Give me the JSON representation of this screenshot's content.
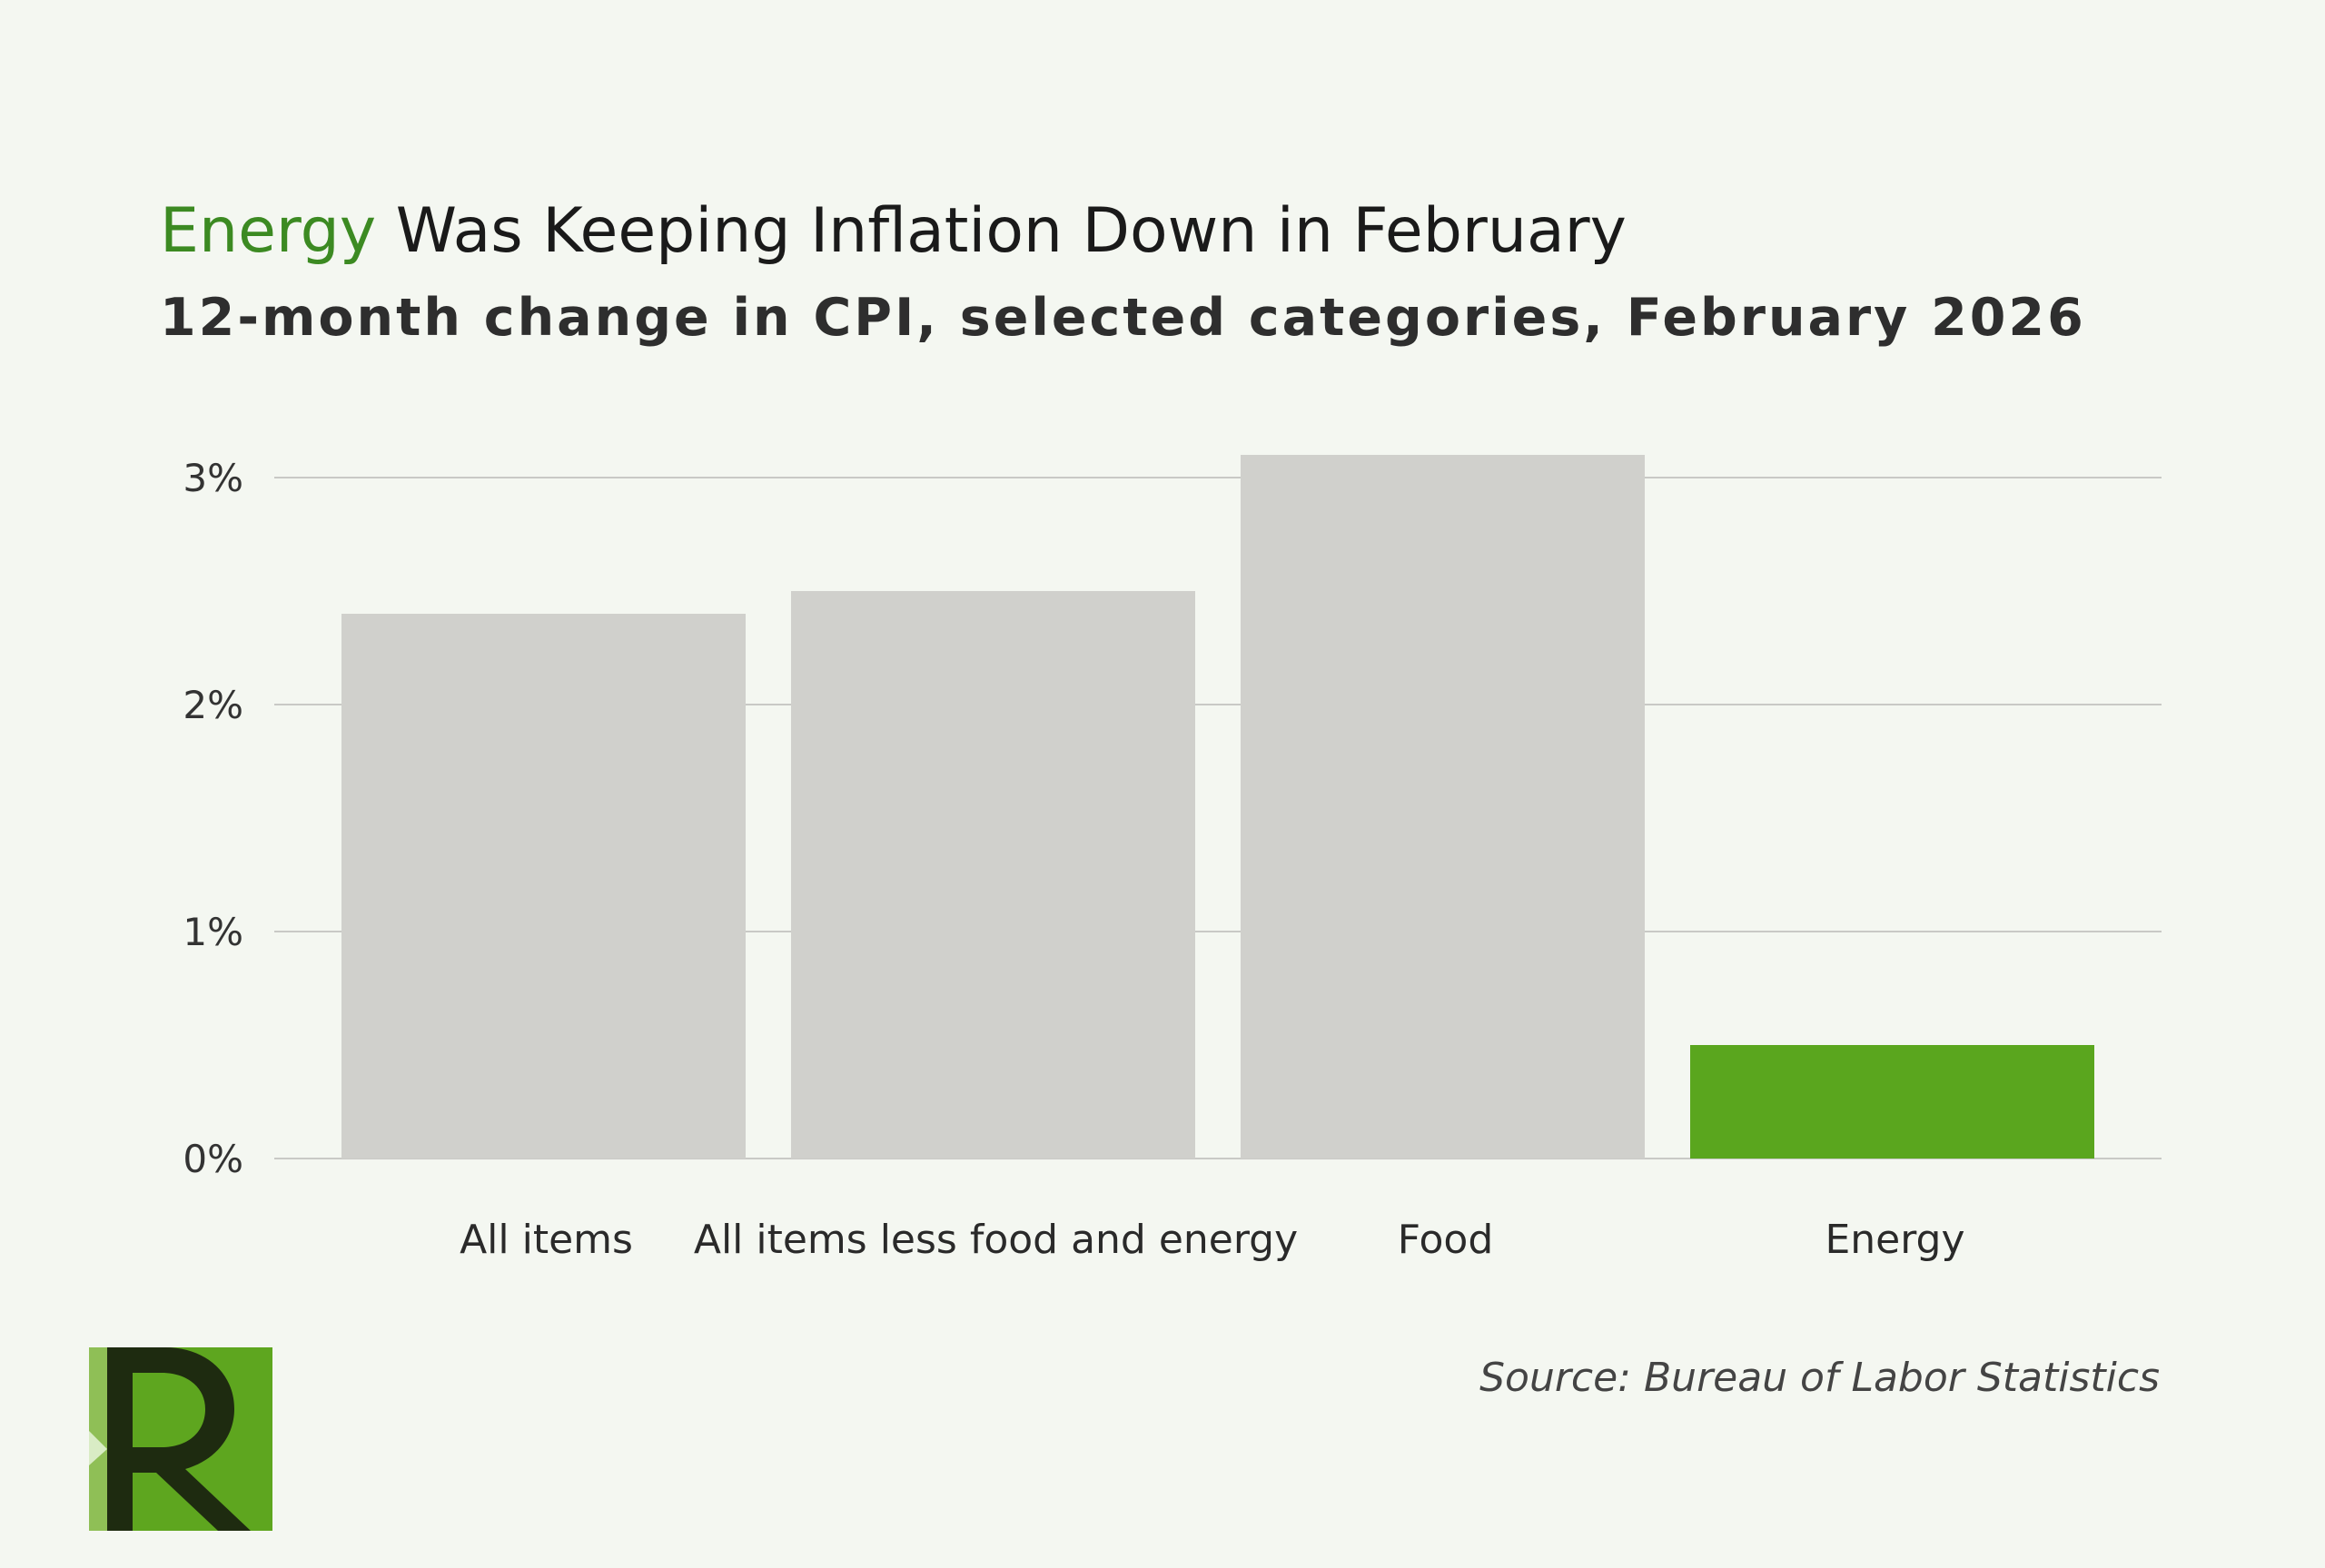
{
  "header": {
    "title_accent": "Energy",
    "title_rest": " Was Keeping Inflation Down in February",
    "subtitle": "12-month change in CPI, selected categories, February 2026"
  },
  "footer": {
    "source": "Source: Bureau of Labor Statistics"
  },
  "colors": {
    "accent": "#3c8a22",
    "bar_default": "#d0d0cc",
    "bar_highlight": "#5aa61e",
    "gridline": "#c9c9c6",
    "background": "#f4f7f1"
  },
  "chart_data": {
    "type": "bar",
    "categories": [
      "All items",
      "All items less food and energy",
      "Food",
      "Energy"
    ],
    "values": [
      2.4,
      2.5,
      3.1,
      0.5
    ],
    "highlight": [
      "Energy"
    ],
    "yticks": [
      0,
      1,
      2,
      3
    ],
    "ytick_labels": [
      "0%",
      "1%",
      "2%",
      "3%"
    ],
    "ylim": [
      0,
      3.2
    ],
    "grid": true,
    "legend": "none"
  }
}
